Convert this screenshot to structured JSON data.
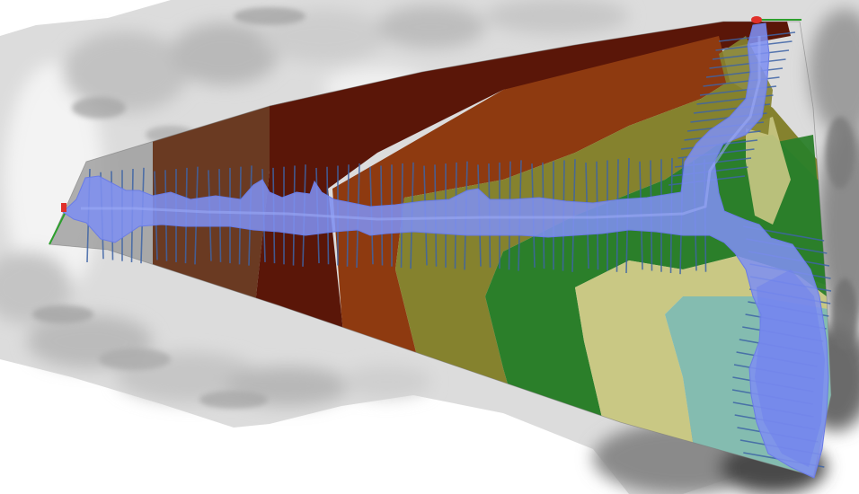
{
  "view": {
    "type": "terrain-map",
    "basemap": "grayscale-hillshade-dem",
    "overlay": "banded-colored-surface",
    "features": [
      "cross-section-lines",
      "flood-extent",
      "endpoint-markers"
    ]
  },
  "colors": {
    "background": "#ffffff",
    "terrain_light": "#e4e4e4",
    "terrain_mid": "#bcbcbc",
    "terrain_dark": "#6a6a6a",
    "band_gray": "#9a9a9a",
    "band_brown": "#6a3a22",
    "band_dark_red": "#5a1608",
    "band_rust": "#8e3a10",
    "band_olive": "#85822e",
    "band_green": "#2b7f2a",
    "band_khaki": "#c9c884",
    "band_teal": "#84bcb0",
    "flood_extent": "#7e8ff0",
    "cross_section": "#3e64a6",
    "marker_red": "#e0302a",
    "marker_green": "#2ca02c"
  }
}
